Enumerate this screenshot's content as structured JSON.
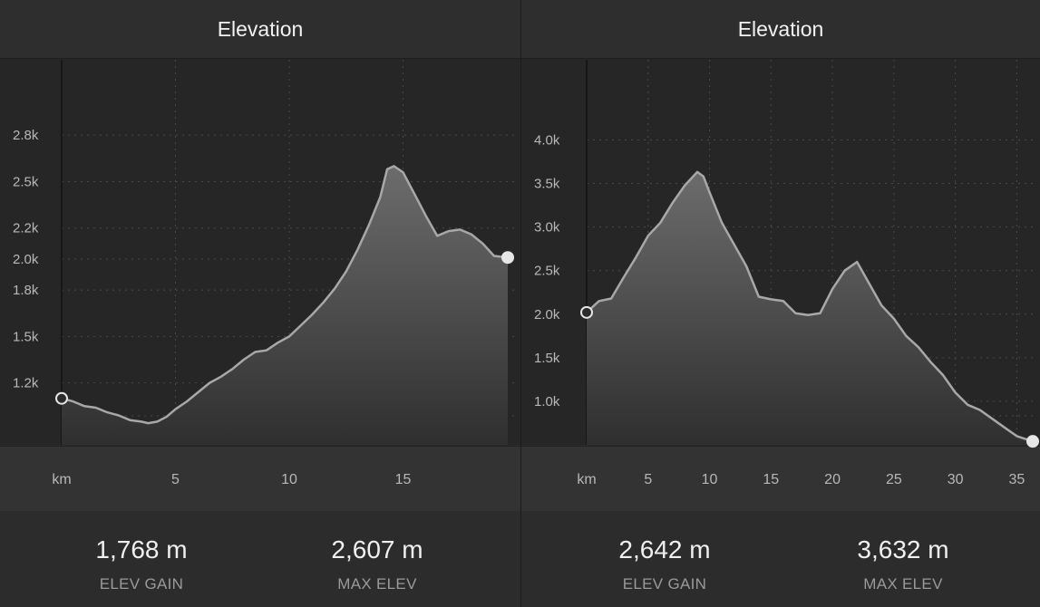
{
  "panels": [
    {
      "title": "Elevation",
      "stats": [
        {
          "value": "1,768 m",
          "label": "ELEV GAIN"
        },
        {
          "value": "2,607 m",
          "label": "MAX ELEV"
        }
      ]
    },
    {
      "title": "Elevation",
      "stats": [
        {
          "value": "2,642 m",
          "label": "ELEV GAIN"
        },
        {
          "value": "3,632 m",
          "label": "MAX ELEV"
        }
      ]
    }
  ],
  "colors": {
    "line": "#a8a8a8",
    "fill_top": "#6c6c6c",
    "fill_bottom": "#2f2f2f",
    "grid": "#4a4a4a",
    "tick_text": "#b8b8b8",
    "start_marker": "#2b2b2b",
    "end_marker": "#e6e6e6"
  },
  "chart_data": [
    {
      "type": "area",
      "title": "Elevation",
      "xlabel": "km",
      "ylabel": "",
      "x_unit": "km",
      "xlim": [
        0,
        19.6
      ],
      "ylim": [
        800,
        3000
      ],
      "x_ticks": [
        5,
        10,
        15
      ],
      "y_ticks": [
        1200,
        1500,
        1800,
        2000,
        2200,
        2500,
        2800
      ],
      "y_tick_labels": [
        "1.2k",
        "1.5k",
        "1.8k",
        "2.0k",
        "2.2k",
        "2.5k",
        "2.8k"
      ],
      "grid": true,
      "x": [
        0,
        0.5,
        1,
        1.5,
        2,
        2.5,
        3,
        3.5,
        3.8,
        4.2,
        4.6,
        5,
        5.5,
        6,
        6.5,
        7,
        7.5,
        8,
        8.5,
        9,
        9.5,
        10,
        10.5,
        11,
        11.5,
        12,
        12.5,
        13,
        13.5,
        14,
        14.3,
        14.6,
        15,
        15.5,
        16,
        16.5,
        17,
        17.5,
        18,
        18.5,
        19,
        19.6
      ],
      "values": [
        1100,
        1080,
        1050,
        1040,
        1010,
        990,
        960,
        950,
        940,
        950,
        980,
        1030,
        1080,
        1140,
        1200,
        1240,
        1290,
        1350,
        1400,
        1410,
        1460,
        1500,
        1570,
        1640,
        1720,
        1810,
        1920,
        2060,
        2220,
        2400,
        2580,
        2600,
        2560,
        2420,
        2280,
        2150,
        2180,
        2190,
        2160,
        2100,
        2020,
        2010
      ]
    },
    {
      "type": "area",
      "title": "Elevation",
      "xlabel": "km",
      "ylabel": "",
      "x_unit": "km",
      "xlim": [
        0,
        36.3
      ],
      "ylim": [
        500,
        4400
      ],
      "x_ticks": [
        5,
        10,
        15,
        20,
        25,
        30,
        35
      ],
      "y_ticks": [
        1000,
        1500,
        2000,
        2500,
        3000,
        3500,
        4000
      ],
      "y_tick_labels": [
        "1.0k",
        "1.5k",
        "2.0k",
        "2.5k",
        "3.0k",
        "3.5k",
        "4.0k"
      ],
      "grid": true,
      "x": [
        0,
        1,
        2,
        3,
        4,
        5,
        6,
        7,
        8,
        9,
        9.5,
        10,
        11,
        12,
        13,
        14,
        15,
        16,
        17,
        18,
        19,
        20,
        21,
        22,
        23,
        24,
        25,
        26,
        27,
        28,
        29,
        30,
        31,
        32,
        33,
        34,
        35,
        36.3
      ],
      "values": [
        2020,
        2150,
        2180,
        2420,
        2650,
        2900,
        3050,
        3280,
        3480,
        3632,
        3580,
        3400,
        3050,
        2800,
        2550,
        2200,
        2170,
        2150,
        2010,
        1990,
        2010,
        2290,
        2500,
        2600,
        2350,
        2100,
        1950,
        1750,
        1620,
        1450,
        1300,
        1100,
        960,
        900,
        800,
        700,
        600,
        540
      ]
    }
  ]
}
